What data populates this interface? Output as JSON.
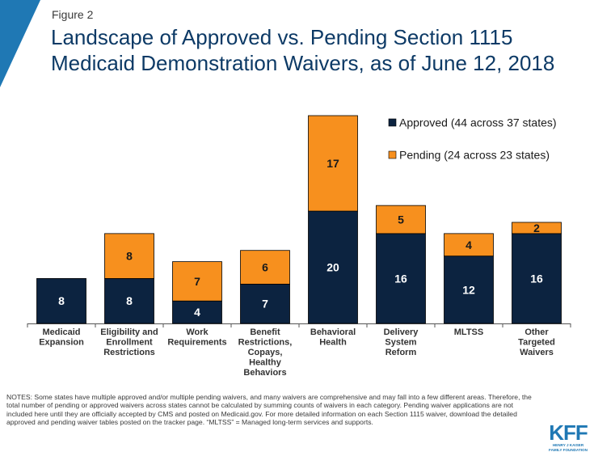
{
  "figure_label": "Figure 2",
  "title_line1": "Landscape of Approved vs. Pending Section 1115",
  "title_line2": "Medicaid Demonstration Waivers, as of June 12, 2018",
  "notes": "NOTES: Some states have multiple approved and/or multiple pending waivers, and many waivers are comprehensive and may fall into a few different areas. Therefore, the total number of pending or approved waivers across states cannot be calculated by summing counts of waivers in each category. Pending waiver applications are not included here until they are officially accepted by CMS and posted on Medicaid.gov. For more detailed information on each Section 1115 waiver, download the detailed approved and pending waiver tables posted on the tracker page. “MLTSS” = Managed long-term services and supports.",
  "logo": {
    "mark": "KFF",
    "sub1": "HENRY J KAISER",
    "sub2": "FAMILY FOUNDATION"
  },
  "colors": {
    "approved": "#0c2340",
    "pending": "#f7901e",
    "accent": "#1f78b4",
    "title": "#0d3a66"
  },
  "chart_data": {
    "type": "bar",
    "stacked": true,
    "categories": [
      [
        "Medicaid",
        "Expansion"
      ],
      [
        "Eligibility and",
        "Enrollment",
        "Restrictions"
      ],
      [
        "Work",
        "Requirements"
      ],
      [
        "Benefit",
        "Restrictions,",
        "Copays,",
        "Healthy",
        "Behaviors"
      ],
      [
        "Behavioral",
        "Health"
      ],
      [
        "Delivery",
        "System",
        "Reform"
      ],
      [
        "MLTSS"
      ],
      [
        "Other",
        "Targeted",
        "Waivers"
      ]
    ],
    "series": [
      {
        "name": "Approved (44 across 37 states)",
        "values": [
          8,
          8,
          4,
          7,
          20,
          16,
          12,
          16
        ]
      },
      {
        "name": "Pending (24 across 23 states)",
        "values": [
          0,
          8,
          7,
          6,
          17,
          5,
          4,
          2
        ]
      }
    ],
    "ylim": [
      0,
      37
    ],
    "legend": "top-right",
    "grid": false
  }
}
